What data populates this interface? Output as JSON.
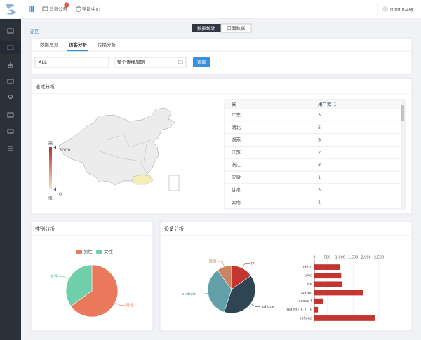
{
  "top_bar": {
    "messages": "消息公告",
    "badge": "3",
    "help": "帮助中心",
    "user": "momo.zxy"
  },
  "back": "返回",
  "view_toggle": [
    "数据统计",
    "页面数据"
  ],
  "tabs": [
    "数据总览",
    "访客分析",
    "传播分析"
  ],
  "filters": {
    "channel": "ALL",
    "period": "整个传播周期",
    "button": "查询"
  },
  "region": {
    "title": "地域分析",
    "visual_map": {
      "max": 5000,
      "min": 0,
      "high_label": "高",
      "low_label": "低",
      "colors": [
        "#f5ecb8",
        "#b0302f"
      ]
    },
    "table": {
      "header": [
        "省",
        "用户数"
      ],
      "rows": [
        [
          "广东",
          3
        ],
        [
          "湖北",
          5
        ],
        [
          "湖南",
          3
        ],
        [
          "江苏",
          2
        ],
        [
          "浙江",
          3
        ],
        [
          "安徽",
          1
        ],
        [
          "甘肃",
          3
        ],
        [
          "云南",
          1
        ]
      ]
    }
  },
  "gender_chart": {
    "type": "pie",
    "title": "性别分析",
    "series": [
      {
        "name": "男性",
        "color": "#e9795a",
        "value": 65
      },
      {
        "name": "女性",
        "color": "#6fcfaa",
        "value": 35
      }
    ]
  },
  "device_pie": {
    "type": "pie",
    "title": "设备分析",
    "series": [
      {
        "name": "pc",
        "color": "#c23531",
        "value": 15
      },
      {
        "name": "iphone",
        "color": "#2f4554",
        "value": 40
      },
      {
        "name": "android",
        "color": "#61a0a8",
        "value": 35
      },
      {
        "name": "其他",
        "color": "#ca8462",
        "value": 10
      }
    ]
  },
  "device_bar": {
    "type": "bar",
    "orientation": "horizontal",
    "color": "#c23531",
    "categories": [
      "meizu",
      "vivo",
      "zte",
      "huawei",
      "nexus 4",
      "HM NOTE 1LTE",
      "iphone"
    ],
    "values": [
      1000,
      1040,
      1070,
      1900,
      330,
      140,
      2360
    ],
    "xlim": [
      0,
      2500
    ],
    "xticks": [
      0,
      500,
      {
        "value": 1000,
        "label": "1,000"
      },
      {
        "value": 1500,
        "label": "1,500"
      },
      {
        "value": 2000,
        "label": "2,000"
      },
      {
        "value": 2500,
        "label": "2,500"
      }
    ],
    "grid": true
  }
}
